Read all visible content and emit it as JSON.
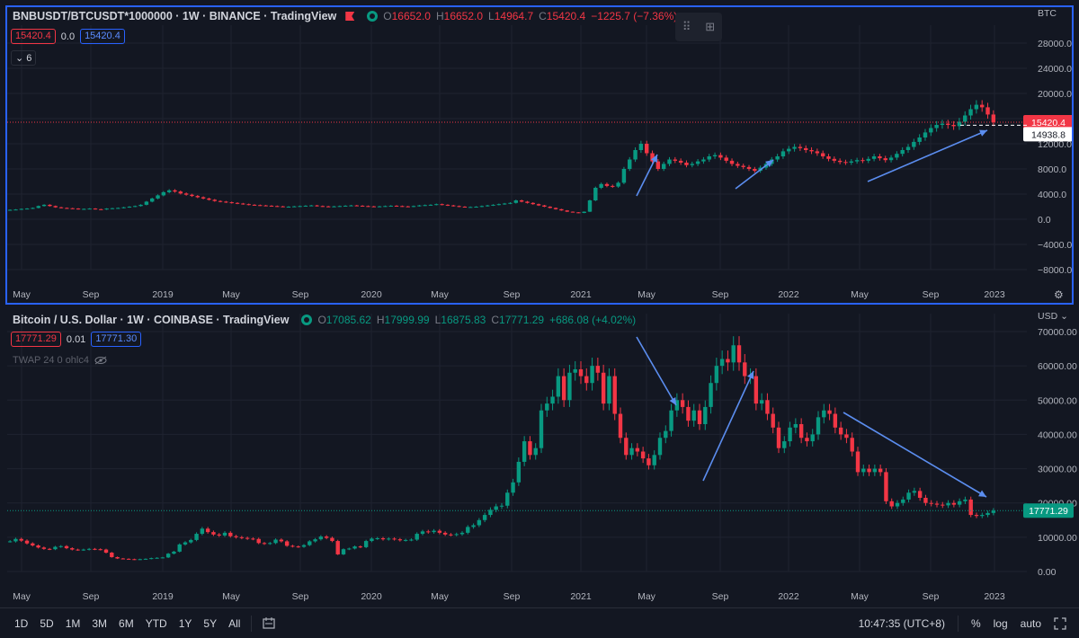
{
  "top": {
    "symbol": "BNBUSDT/BTCUSDT*1000000 · 1W · BINANCE · TradingView",
    "o_label": "O",
    "o": "16652.0",
    "h_label": "H",
    "h": "16652.0",
    "l_label": "L",
    "l": "14964.7",
    "c_label": "C",
    "c": "15420.4",
    "change": "−1225.7 (−7.36%)",
    "box1": "15420.4",
    "mid": "0.0",
    "box2": "15420.4",
    "collapse": "6",
    "currency": "BTC",
    "price_ticks": [
      "28000.0",
      "24000.0",
      "20000.0",
      "16000.0",
      "12000.0",
      "8000.0",
      "4000.0",
      "0.0",
      "−4000.0",
      "−8000.0"
    ],
    "last_price": "15420.4",
    "cross_price": "14938.8",
    "time_ticks": [
      "May",
      "Sep",
      "2019",
      "May",
      "Sep",
      "2020",
      "May",
      "Sep",
      "2021",
      "May",
      "Sep",
      "2022",
      "May",
      "Sep",
      "2023"
    ]
  },
  "bottom": {
    "symbol": "Bitcoin / U.S. Dollar · 1W · COINBASE · TradingView",
    "o_label": "O",
    "o": "17085.62",
    "h_label": "H",
    "h": "17999.99",
    "l_label": "L",
    "l": "16875.83",
    "c_label": "C",
    "c": "17771.29",
    "change": "+686.08 (+4.02%)",
    "box1": "17771.29",
    "mid": "0.01",
    "box2": "17771.30",
    "indicator": "TWAP 24 0 ohlc4",
    "currency": "USD",
    "price_ticks": [
      "70000.00",
      "60000.00",
      "50000.00",
      "40000.00",
      "30000.00",
      "20000.00",
      "10000.00",
      "0.00"
    ],
    "last_price": "17771.29",
    "time_ticks": [
      "May",
      "Sep",
      "2019",
      "May",
      "Sep",
      "2020",
      "May",
      "Sep",
      "2021",
      "May",
      "Sep",
      "2022",
      "May",
      "Sep",
      "2023"
    ]
  },
  "toolbar": {
    "timeframes": [
      "1D",
      "5D",
      "1M",
      "3M",
      "6M",
      "YTD",
      "1Y",
      "5Y",
      "All"
    ],
    "clock": "10:47:35 (UTC+8)",
    "pct": "%",
    "log": "log",
    "auto": "auto"
  },
  "colors": {
    "up": "#089981",
    "down": "#f23645",
    "accent": "#2962ff",
    "arrow": "#5b8def"
  },
  "chart_data": [
    {
      "type": "candlestick",
      "title": "BNBUSDT/BTCUSDT*1000000 · 1W · BINANCE",
      "ylim": [
        -8000,
        28000
      ],
      "x_ticks": [
        "May",
        "Sep",
        "2019",
        "May",
        "Sep",
        "2020",
        "May",
        "Sep",
        "2021",
        "May",
        "Sep",
        "2022",
        "May",
        "Sep",
        "2023"
      ],
      "series": [
        {
          "values": [
            1500,
            1550,
            1650,
            1700,
            1800,
            2100,
            2300,
            2100,
            1900,
            1800,
            1750,
            1700,
            1600,
            1650,
            1700,
            1600,
            1550,
            1700,
            1750,
            1800,
            1900,
            2000,
            2100,
            2300,
            2800,
            3300,
            3800,
            4300,
            4600,
            4400,
            4100,
            3900,
            3700,
            3500,
            3300,
            3100,
            2900,
            2800,
            2700,
            2600,
            2500,
            2400,
            2300,
            2250,
            2200,
            2150,
            2100,
            2050,
            2000,
            2000,
            2050,
            2100,
            2150,
            2200,
            2100,
            2050,
            2000,
            2050,
            2100,
            2150,
            2200,
            2150,
            2100,
            2050,
            2000,
            2050,
            2100,
            2150,
            2100,
            2050,
            2000,
            2100,
            2200,
            2250,
            2300,
            2400,
            2300,
            2200,
            2100,
            2000,
            1950,
            1950,
            2000,
            2100,
            2200,
            2300,
            2400,
            2500,
            2600,
            3000,
            2800,
            2600,
            2400,
            2200,
            2000,
            1800,
            1600,
            1400,
            1200,
            1100,
            1000,
            1200,
            3000,
            5000,
            5600,
            5300,
            5200,
            5800,
            8000,
            9500,
            11000,
            12000,
            10500,
            9200,
            8000,
            8800,
            9500,
            9300,
            9000,
            8600,
            8800,
            9200,
            9500,
            10000,
            10200,
            9800,
            9300,
            8800,
            8500,
            8300,
            8000,
            7700,
            8200,
            8800,
            9500,
            10000,
            10800,
            11200,
            11500,
            11300,
            11000,
            10800,
            10500,
            10000,
            9600,
            9300,
            9100,
            9000,
            9200,
            9400,
            9300,
            9600,
            10000,
            9700,
            9400,
            9800,
            10400,
            11000,
            11500,
            12300,
            13000,
            13800,
            14500,
            15000,
            15200,
            15000,
            14800,
            15500,
            16500,
            17500,
            18200,
            17800,
            16652,
            15420
          ]
        }
      ],
      "last": 15420.4
    },
    {
      "type": "candlestick",
      "title": "Bitcoin / U.S. Dollar · 1W · COINBASE",
      "ylim": [
        0,
        70000
      ],
      "x_ticks": [
        "May",
        "Sep",
        "2019",
        "May",
        "Sep",
        "2020",
        "May",
        "Sep",
        "2021",
        "May",
        "Sep",
        "2022",
        "May",
        "Sep",
        "2023"
      ],
      "series": [
        {
          "values": [
            8800,
            9500,
            9000,
            8200,
            7600,
            7000,
            6600,
            6500,
            7200,
            7400,
            6800,
            6400,
            6300,
            6400,
            6600,
            6500,
            6400,
            5500,
            4200,
            3800,
            3700,
            3600,
            3500,
            3600,
            3700,
            3900,
            4000,
            4100,
            5200,
            5800,
            7900,
            8500,
            9200,
            11000,
            12500,
            11500,
            10800,
            10500,
            11300,
            10300,
            10000,
            9800,
            9600,
            9500,
            8300,
            8100,
            8300,
            9300,
            8800,
            7500,
            7300,
            7200,
            7700,
            8800,
            9400,
            10200,
            9800,
            8900,
            5000,
            6500,
            6700,
            7300,
            7100,
            8900,
            9600,
            9700,
            9400,
            9600,
            9400,
            9100,
            9200,
            9300,
            11000,
            11700,
            11500,
            11900,
            11300,
            10800,
            10700,
            10900,
            11300,
            13000,
            13500,
            15000,
            16500,
            18000,
            19000,
            19200,
            23000,
            26000,
            32000,
            38000,
            34000,
            36000,
            47000,
            49000,
            51000,
            57000,
            50000,
            58000,
            59000,
            57000,
            55000,
            60000,
            58000,
            49000,
            57000,
            46000,
            39000,
            34000,
            36000,
            35000,
            33000,
            31000,
            34000,
            39000,
            41000,
            47000,
            50000,
            48000,
            44000,
            47000,
            43000,
            48000,
            55000,
            60000,
            62000,
            61000,
            66000,
            61000,
            57000,
            57000,
            49000,
            50000,
            46000,
            42000,
            36000,
            38000,
            42000,
            43000,
            39000,
            38000,
            40000,
            45000,
            47000,
            46000,
            42000,
            40000,
            39000,
            35000,
            29000,
            30000,
            29000,
            30000,
            29000,
            20500,
            19000,
            20000,
            21000,
            23000,
            23500,
            21500,
            20000,
            19800,
            19500,
            19300,
            20000,
            19500,
            20500,
            21000,
            16500,
            16200,
            16500,
            17085,
            17771
          ]
        }
      ],
      "last": 17771.29
    }
  ]
}
